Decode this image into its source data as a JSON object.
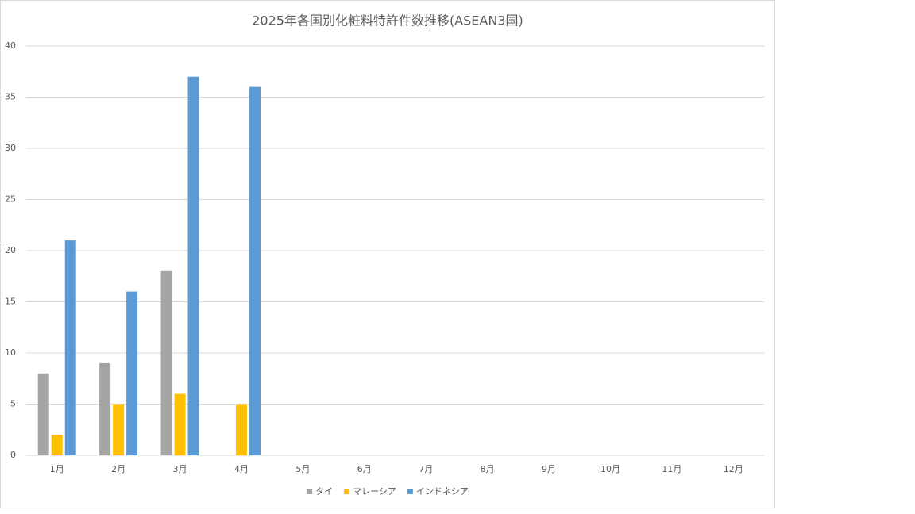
{
  "chart_data": {
    "type": "bar",
    "title": "2025年各国別化粧料特許件数推移(ASEAN3国)",
    "categories": [
      "1月",
      "2月",
      "3月",
      "4月",
      "5月",
      "6月",
      "7月",
      "8月",
      "9月",
      "10月",
      "11月",
      "12月"
    ],
    "series": [
      {
        "name": "タイ",
        "color": "#a5a5a5",
        "values": [
          8,
          9,
          18,
          null,
          null,
          null,
          null,
          null,
          null,
          null,
          null,
          null
        ]
      },
      {
        "name": "マレーシア",
        "color": "#ffc000",
        "values": [
          2,
          5,
          6,
          5,
          null,
          null,
          null,
          null,
          null,
          null,
          null,
          null
        ]
      },
      {
        "name": "インドネシア",
        "color": "#5b9bd5",
        "values": [
          21,
          16,
          37,
          36,
          null,
          null,
          null,
          null,
          null,
          null,
          null,
          null
        ]
      }
    ],
    "ylim": [
      0,
      40
    ],
    "yticks": [
      0,
      5,
      10,
      15,
      20,
      25,
      30,
      35,
      40
    ],
    "grid": true,
    "legend": "bottom"
  }
}
